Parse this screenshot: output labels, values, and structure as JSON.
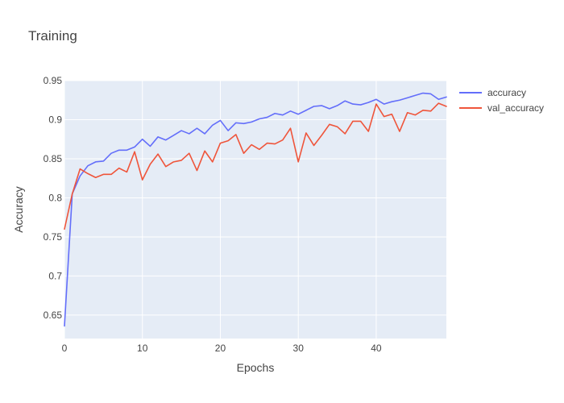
{
  "chart_data": {
    "type": "line",
    "title": "Training",
    "xlabel": "Epochs",
    "ylabel": "Accuracy",
    "xlim": [
      0,
      49
    ],
    "ylim": [
      0.62,
      0.95
    ],
    "xticks": [
      0,
      10,
      20,
      30,
      40
    ],
    "xtick_labels": [
      "0",
      "10",
      "20",
      "30",
      "40"
    ],
    "yticks": [
      0.65,
      0.7,
      0.75,
      0.8,
      0.85,
      0.9,
      0.95
    ],
    "ytick_labels": [
      "0.65",
      "0.7",
      "0.75",
      "0.8",
      "0.85",
      "0.9",
      "0.95"
    ],
    "grid": true,
    "legend_position": "top-right",
    "plot_background": "#e5ecf6",
    "x": [
      0,
      1,
      2,
      3,
      4,
      5,
      6,
      7,
      8,
      9,
      10,
      11,
      12,
      13,
      14,
      15,
      16,
      17,
      18,
      19,
      20,
      21,
      22,
      23,
      24,
      25,
      26,
      27,
      28,
      29,
      30,
      31,
      32,
      33,
      34,
      35,
      36,
      37,
      38,
      39,
      40,
      41,
      42,
      43,
      44,
      45,
      46,
      47,
      48,
      49
    ],
    "series": [
      {
        "name": "accuracy",
        "color": "#636efa",
        "values": [
          0.636,
          0.805,
          0.828,
          0.841,
          0.846,
          0.847,
          0.857,
          0.861,
          0.861,
          0.865,
          0.875,
          0.866,
          0.878,
          0.874,
          0.88,
          0.886,
          0.882,
          0.889,
          0.882,
          0.893,
          0.899,
          0.886,
          0.896,
          0.895,
          0.897,
          0.901,
          0.903,
          0.908,
          0.906,
          0.911,
          0.907,
          0.912,
          0.917,
          0.918,
          0.914,
          0.918,
          0.924,
          0.92,
          0.919,
          0.922,
          0.926,
          0.92,
          0.923,
          0.925,
          0.928,
          0.931,
          0.934,
          0.933,
          0.926,
          0.929
        ]
      },
      {
        "name": "val_accuracy",
        "color": "#ef553b",
        "values": [
          0.76,
          0.805,
          0.837,
          0.831,
          0.826,
          0.83,
          0.83,
          0.838,
          0.833,
          0.859,
          0.823,
          0.843,
          0.856,
          0.84,
          0.846,
          0.848,
          0.857,
          0.835,
          0.86,
          0.846,
          0.87,
          0.873,
          0.881,
          0.857,
          0.868,
          0.862,
          0.87,
          0.869,
          0.874,
          0.889,
          0.846,
          0.883,
          0.867,
          0.88,
          0.894,
          0.891,
          0.882,
          0.898,
          0.898,
          0.885,
          0.92,
          0.904,
          0.907,
          0.885,
          0.909,
          0.906,
          0.912,
          0.911,
          0.921,
          0.917
        ]
      }
    ]
  }
}
